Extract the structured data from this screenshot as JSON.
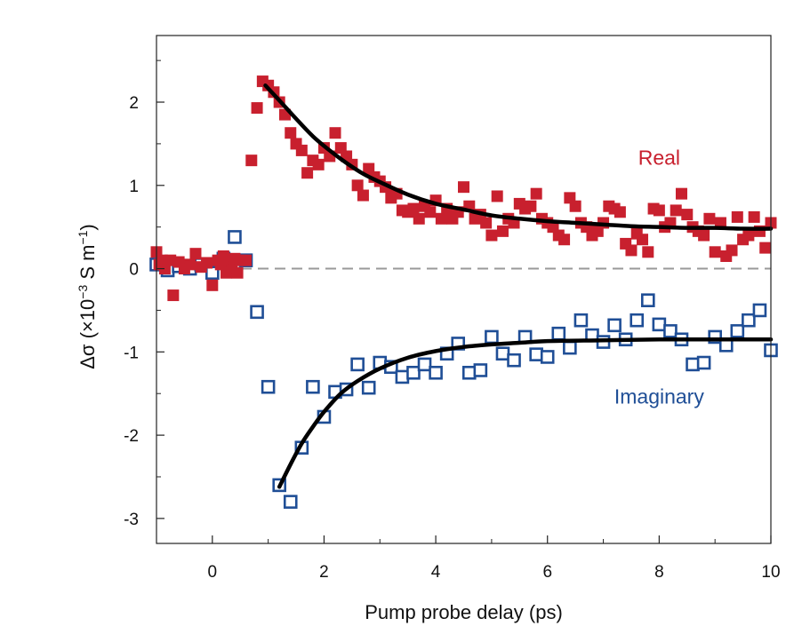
{
  "chart_data": {
    "type": "scatter",
    "title": "",
    "xlabel": "Pump probe delay (ps)",
    "ylabel": {
      "prefix": "Δσ (×10",
      "exp1": "−3",
      "mid": " S m",
      "exp2": "−1",
      "suffix": ")"
    },
    "xlim": [
      -1,
      10
    ],
    "ylim": [
      -3.3,
      2.8
    ],
    "x_ticks": [
      0,
      2,
      4,
      6,
      8,
      10
    ],
    "y_ticks": [
      2,
      1,
      0,
      -1,
      -2,
      -3
    ],
    "x_tick_labels": [
      "0",
      "2",
      "4",
      "6",
      "8",
      "10"
    ],
    "y_tick_labels": [
      "2",
      "1",
      "0",
      "-1",
      "-2",
      "-3"
    ],
    "reference_line": {
      "y": 0,
      "style": "dashed",
      "color": "#999999"
    },
    "colors": {
      "real": "#c8202e",
      "imaginary": "#1f4e96",
      "fit": "#000000"
    },
    "series": [
      {
        "name": "Real",
        "marker": "filled-square",
        "points": [
          [
            -1.0,
            0.2
          ],
          [
            -0.95,
            0.05
          ],
          [
            -0.9,
            0.1
          ],
          [
            -0.85,
            0.0
          ],
          [
            -0.75,
            0.1
          ],
          [
            -0.7,
            -0.32
          ],
          [
            -0.6,
            0.08
          ],
          [
            -0.5,
            0.0
          ],
          [
            -0.4,
            0.05
          ],
          [
            -0.3,
            0.18
          ],
          [
            -0.2,
            0.02
          ],
          [
            -0.1,
            0.07
          ],
          [
            0.0,
            -0.2
          ],
          [
            0.1,
            0.1
          ],
          [
            0.15,
            0.05
          ],
          [
            0.2,
            0.15
          ],
          [
            0.25,
            -0.05
          ],
          [
            0.3,
            0.1
          ],
          [
            0.35,
            0.02
          ],
          [
            0.4,
            0.12
          ],
          [
            0.45,
            -0.05
          ],
          [
            0.5,
            0.1
          ],
          [
            0.6,
            0.1
          ],
          [
            0.7,
            1.3
          ],
          [
            0.8,
            1.93
          ],
          [
            0.9,
            2.25
          ],
          [
            1.0,
            2.2
          ],
          [
            1.1,
            2.12
          ],
          [
            1.2,
            2.0
          ],
          [
            1.3,
            1.85
          ],
          [
            1.4,
            1.63
          ],
          [
            1.5,
            1.5
          ],
          [
            1.6,
            1.42
          ],
          [
            1.7,
            1.15
          ],
          [
            1.8,
            1.3
          ],
          [
            1.9,
            1.25
          ],
          [
            2.0,
            1.45
          ],
          [
            2.1,
            1.35
          ],
          [
            2.2,
            1.63
          ],
          [
            2.3,
            1.45
          ],
          [
            2.4,
            1.35
          ],
          [
            2.5,
            1.25
          ],
          [
            2.6,
            1.0
          ],
          [
            2.7,
            0.88
          ],
          [
            2.8,
            1.2
          ],
          [
            2.9,
            1.1
          ],
          [
            3.0,
            1.05
          ],
          [
            3.1,
            0.98
          ],
          [
            3.2,
            0.85
          ],
          [
            3.3,
            0.9
          ],
          [
            3.4,
            0.7
          ],
          [
            3.5,
            0.68
          ],
          [
            3.6,
            0.72
          ],
          [
            3.7,
            0.6
          ],
          [
            3.8,
            0.75
          ],
          [
            3.9,
            0.68
          ],
          [
            4.0,
            0.82
          ],
          [
            4.1,
            0.6
          ],
          [
            4.2,
            0.72
          ],
          [
            4.3,
            0.6
          ],
          [
            4.4,
            0.68
          ],
          [
            4.5,
            0.98
          ],
          [
            4.6,
            0.75
          ],
          [
            4.7,
            0.6
          ],
          [
            4.8,
            0.65
          ],
          [
            4.9,
            0.55
          ],
          [
            5.0,
            0.4
          ],
          [
            5.1,
            0.87
          ],
          [
            5.2,
            0.45
          ],
          [
            5.3,
            0.6
          ],
          [
            5.4,
            0.55
          ],
          [
            5.5,
            0.78
          ],
          [
            5.6,
            0.72
          ],
          [
            5.7,
            0.75
          ],
          [
            5.8,
            0.9
          ],
          [
            5.9,
            0.6
          ],
          [
            6.0,
            0.55
          ],
          [
            6.1,
            0.5
          ],
          [
            6.2,
            0.4
          ],
          [
            6.3,
            0.35
          ],
          [
            6.4,
            0.85
          ],
          [
            6.5,
            0.75
          ],
          [
            6.6,
            0.55
          ],
          [
            6.7,
            0.5
          ],
          [
            6.8,
            0.4
          ],
          [
            6.9,
            0.45
          ],
          [
            7.0,
            0.55
          ],
          [
            7.1,
            0.75
          ],
          [
            7.2,
            0.72
          ],
          [
            7.3,
            0.68
          ],
          [
            7.4,
            0.3
          ],
          [
            7.5,
            0.22
          ],
          [
            7.6,
            0.42
          ],
          [
            7.7,
            0.35
          ],
          [
            7.8,
            0.2
          ],
          [
            7.9,
            0.72
          ],
          [
            8.0,
            0.7
          ],
          [
            8.1,
            0.5
          ],
          [
            8.2,
            0.55
          ],
          [
            8.3,
            0.7
          ],
          [
            8.4,
            0.9
          ],
          [
            8.5,
            0.65
          ],
          [
            8.6,
            0.5
          ],
          [
            8.7,
            0.45
          ],
          [
            8.8,
            0.4
          ],
          [
            8.9,
            0.6
          ],
          [
            9.0,
            0.2
          ],
          [
            9.1,
            0.55
          ],
          [
            9.2,
            0.15
          ],
          [
            9.3,
            0.22
          ],
          [
            9.4,
            0.62
          ],
          [
            9.5,
            0.35
          ],
          [
            9.6,
            0.4
          ],
          [
            9.7,
            0.62
          ],
          [
            9.8,
            0.45
          ],
          [
            9.9,
            0.25
          ],
          [
            10.0,
            0.55
          ]
        ]
      },
      {
        "name": "Imaginary",
        "marker": "open-square",
        "points": [
          [
            -1.0,
            0.05
          ],
          [
            -0.8,
            -0.02
          ],
          [
            -0.6,
            0.03
          ],
          [
            -0.4,
            0.0
          ],
          [
            -0.2,
            0.05
          ],
          [
            0.0,
            -0.05
          ],
          [
            0.2,
            0.12
          ],
          [
            0.4,
            0.38
          ],
          [
            0.6,
            0.1
          ],
          [
            0.8,
            -0.52
          ],
          [
            1.0,
            -1.42
          ],
          [
            1.2,
            -2.6
          ],
          [
            1.4,
            -2.8
          ],
          [
            1.6,
            -2.15
          ],
          [
            1.8,
            -1.42
          ],
          [
            2.0,
            -1.78
          ],
          [
            2.2,
            -1.48
          ],
          [
            2.4,
            -1.45
          ],
          [
            2.6,
            -1.15
          ],
          [
            2.8,
            -1.43
          ],
          [
            3.0,
            -1.13
          ],
          [
            3.2,
            -1.18
          ],
          [
            3.4,
            -1.3
          ],
          [
            3.6,
            -1.25
          ],
          [
            3.8,
            -1.15
          ],
          [
            4.0,
            -1.25
          ],
          [
            4.2,
            -1.02
          ],
          [
            4.4,
            -0.9
          ],
          [
            4.6,
            -1.25
          ],
          [
            4.8,
            -1.22
          ],
          [
            5.0,
            -0.82
          ],
          [
            5.2,
            -1.02
          ],
          [
            5.4,
            -1.1
          ],
          [
            5.6,
            -0.82
          ],
          [
            5.8,
            -1.03
          ],
          [
            6.0,
            -1.06
          ],
          [
            6.2,
            -0.78
          ],
          [
            6.4,
            -0.95
          ],
          [
            6.6,
            -0.62
          ],
          [
            6.8,
            -0.8
          ],
          [
            7.0,
            -0.88
          ],
          [
            7.2,
            -0.68
          ],
          [
            7.4,
            -0.85
          ],
          [
            7.6,
            -0.62
          ],
          [
            7.8,
            -0.38
          ],
          [
            8.0,
            -0.67
          ],
          [
            8.2,
            -0.75
          ],
          [
            8.4,
            -0.85
          ],
          [
            8.6,
            -1.15
          ],
          [
            8.8,
            -1.13
          ],
          [
            9.0,
            -0.82
          ],
          [
            9.2,
            -0.92
          ],
          [
            9.4,
            -0.75
          ],
          [
            9.6,
            -0.62
          ],
          [
            9.8,
            -0.5
          ],
          [
            10.0,
            -0.98
          ]
        ]
      }
    ],
    "fits": [
      {
        "name": "Real fit",
        "x": [
          0.95,
          1.2,
          1.5,
          1.8,
          2.1,
          2.4,
          2.7,
          3.0,
          3.5,
          4.0,
          4.5,
          5.0,
          5.5,
          6.0,
          6.5,
          7.0,
          7.5,
          8.0,
          8.5,
          9.0,
          9.5,
          10.0
        ],
        "y": [
          2.2,
          2.02,
          1.8,
          1.59,
          1.42,
          1.27,
          1.14,
          1.04,
          0.89,
          0.78,
          0.71,
          0.64,
          0.6,
          0.57,
          0.55,
          0.53,
          0.51,
          0.5,
          0.49,
          0.49,
          0.48,
          0.48
        ]
      },
      {
        "name": "Imaginary fit",
        "x": [
          1.2,
          1.4,
          1.6,
          1.8,
          2.0,
          2.3,
          2.6,
          3.0,
          3.5,
          4.0,
          4.5,
          5.0,
          5.5,
          6.0,
          7.0,
          8.0,
          9.0,
          10.0
        ],
        "y": [
          -2.62,
          -2.35,
          -2.1,
          -1.9,
          -1.72,
          -1.5,
          -1.35,
          -1.2,
          -1.07,
          -0.99,
          -0.94,
          -0.91,
          -0.89,
          -0.87,
          -0.86,
          -0.85,
          -0.85,
          -0.85
        ]
      }
    ],
    "annotations": [
      {
        "text": "Real",
        "x": 8.0,
        "y": 1.25,
        "color": "#c8202e"
      },
      {
        "text": "Imaginary",
        "x": 8.0,
        "y": -1.62,
        "color": "#1f4e96"
      }
    ]
  }
}
